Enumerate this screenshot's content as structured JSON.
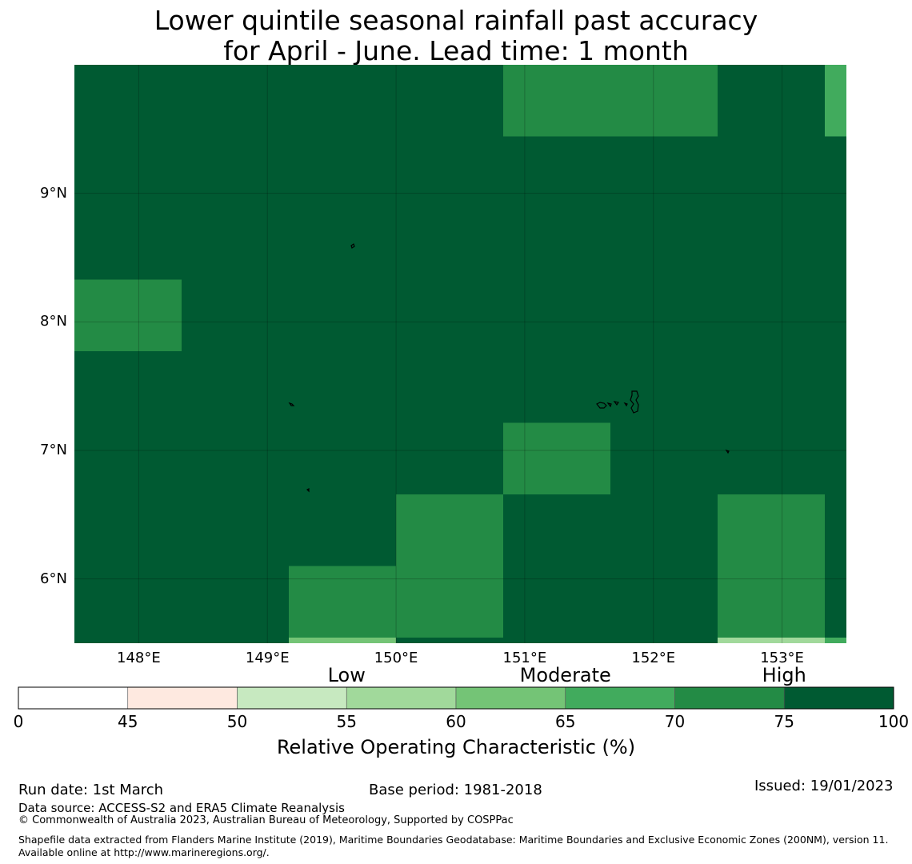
{
  "title": {
    "line1": "Lower quintile seasonal rainfall past accuracy",
    "line2": "for April - June. Lead time: 1 month"
  },
  "map": {
    "lon_range": [
      147.5,
      153.5
    ],
    "lat_range": [
      5.5,
      10.0
    ],
    "grid_cell_deg": 0.833,
    "lat_ticks": [
      "9°N",
      "8°N",
      "7°N",
      "6°N"
    ],
    "lon_ticks": [
      "148°E",
      "149°E",
      "150°E",
      "151°E",
      "152°E",
      "153°E"
    ],
    "cells": [
      {
        "row": 0,
        "col": 4,
        "cls": "70-75"
      },
      {
        "row": 0,
        "col": 5,
        "cls": "70-75"
      },
      {
        "row": 0,
        "col": 7,
        "cls": "65-70"
      },
      {
        "row": 1,
        "col": 4,
        "cls": "75-100"
      },
      {
        "row": 3,
        "col": 0,
        "cls": "70-75"
      },
      {
        "row": 3,
        "col": 2,
        "cls": "75-100"
      },
      {
        "row": 5,
        "col": 4,
        "cls": "70-75"
      },
      {
        "row": 5,
        "col": 5,
        "cls": "75-100"
      },
      {
        "row": 6,
        "col": 0,
        "cls": "75-100"
      },
      {
        "row": 6,
        "col": 3,
        "cls": "70-75"
      },
      {
        "row": 6,
        "col": 5,
        "cls": "75-100"
      },
      {
        "row": 6,
        "col": 6,
        "cls": "70-75"
      },
      {
        "row": 6,
        "col": 7,
        "cls": "75-100"
      },
      {
        "row": 7,
        "col": 0,
        "cls": "75-100"
      },
      {
        "row": 7,
        "col": 2,
        "cls": "70-75"
      },
      {
        "row": 7,
        "col": 3,
        "cls": "70-75"
      },
      {
        "row": 7,
        "col": 4,
        "cls": "75-100"
      },
      {
        "row": 7,
        "col": 5,
        "cls": "75-100"
      },
      {
        "row": 7,
        "col": 6,
        "cls": "70-75"
      },
      {
        "row": 8,
        "col": 2,
        "cls": "60-65"
      },
      {
        "row": 8,
        "col": 3,
        "cls": "75-100"
      },
      {
        "row": 8,
        "col": 4,
        "cls": "75-100"
      },
      {
        "row": 8,
        "col": 5,
        "cls": "75-100"
      },
      {
        "row": 8,
        "col": 6,
        "cls": "55-60"
      },
      {
        "row": 8,
        "col": 7,
        "cls": "65-70"
      }
    ]
  },
  "legend": {
    "categories": [
      "Low",
      "Moderate",
      "High"
    ],
    "ticks": [
      "0",
      "45",
      "50",
      "55",
      "60",
      "65",
      "70",
      "75",
      "100"
    ],
    "bins": [
      {
        "range": "0-45",
        "color": "#ffffff"
      },
      {
        "range": "45-50",
        "color": "#fee9e0"
      },
      {
        "range": "50-55",
        "color": "#c7e9c0"
      },
      {
        "range": "55-60",
        "color": "#a1d99b"
      },
      {
        "range": "60-65",
        "color": "#74c476"
      },
      {
        "range": "65-70",
        "color": "#41ab5d"
      },
      {
        "range": "70-75",
        "color": "#238b45"
      },
      {
        "range": "75-100",
        "color": "#005a32"
      }
    ],
    "label": "Relative Operating Characteristic (%)"
  },
  "footer": {
    "run_date": "Run date: 1st March",
    "base_period": "Base period: 1981-2018",
    "issued": "Issued: 19/01/2023",
    "data_source": "Data source: ACCESS-S2 and ERA5 Climate Reanalysis",
    "copyright": "© Commonwealth of Australia 2023, Australian Bureau of Meteorology, Supported by COSPPac",
    "shapefile": "Shapefile data extracted from Flanders Marine Institute (2019), Maritime Boundaries Geodatabase: Maritime Boundaries and Exclusive Economic Zones (200NM), version 11. Available online at http://www.marineregions.org/."
  }
}
